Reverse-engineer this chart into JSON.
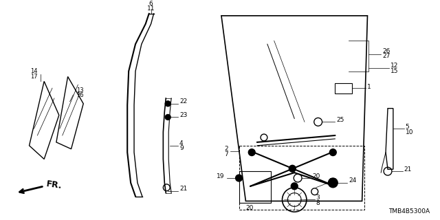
{
  "background_color": "#ffffff",
  "diagram_code": "TMB4B5300A",
  "figsize": [
    6.4,
    3.2
  ],
  "dpi": 100,
  "lw": 1.0
}
